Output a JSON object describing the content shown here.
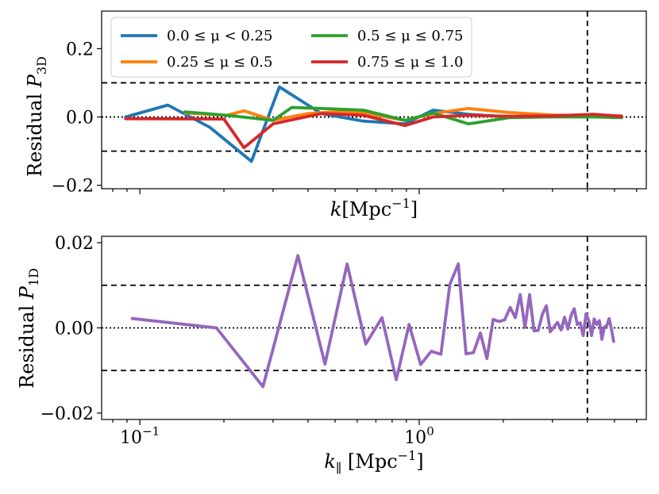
{
  "chart_data": [
    {
      "type": "line",
      "xscale": "log",
      "xlim": [
        0.073,
        6.5
      ],
      "ylim": [
        -0.21,
        0.31
      ],
      "xlabel_main": "k",
      "xlabel_unit": "[Mpc",
      "xlabel_exp": "−1",
      "xlabel_close": "]",
      "ylabel_main": "Residual ",
      "ylabel_sym": "P",
      "ylabel_sub": "3D",
      "yticks": [
        -0.2,
        0.0,
        0.2
      ],
      "ytick_labels": [
        "−0.2",
        "0.0",
        "0.2"
      ],
      "xticks_major": [
        0.1,
        1.0
      ],
      "hlines_dashed": [
        0.1,
        -0.1
      ],
      "hline_dotted": 0.0,
      "vline_dashed": 4.0,
      "legend": {
        "placement": "top-left",
        "columns": 2,
        "entries": [
          {
            "label": "0.0 ≤ μ < 0.25",
            "color": "#1f77b4"
          },
          {
            "label": "0.5 ≤ μ ≤ 0.75",
            "color": "#2ca02c"
          },
          {
            "label": "0.25 ≤ μ ≤ 0.5",
            "color": "#ff7f0e"
          },
          {
            "label": "0.75 ≤ μ ≤ 1.0",
            "color": "#d62728"
          }
        ]
      },
      "series": [
        {
          "name": "0.0 ≤ μ < 0.25",
          "color": "#1f77b4",
          "x": [
            0.089,
            0.126,
            0.178,
            0.251,
            0.316,
            0.446,
            0.63,
            0.89,
            1.12,
            1.5,
            2.1,
            3.0,
            4.2,
            5.3
          ],
          "y": [
            0.0,
            0.035,
            -0.03,
            -0.13,
            0.088,
            0.01,
            -0.012,
            -0.02,
            0.02,
            0.008,
            0.0,
            0.002,
            0.003,
            0.0
          ]
        },
        {
          "name": "0.25 ≤ μ ≤ 0.5",
          "color": "#ff7f0e",
          "x": [
            0.145,
            0.205,
            0.236,
            0.265,
            0.3,
            0.4,
            0.5,
            0.63,
            0.89,
            1.12,
            1.5,
            2.1,
            3.0,
            4.2,
            5.3
          ],
          "y": [
            0.012,
            0.005,
            0.018,
            0.005,
            -0.01,
            0.01,
            0.015,
            0.012,
            -0.01,
            0.01,
            0.025,
            0.013,
            0.006,
            0.004,
            0.003
          ]
        },
        {
          "name": "0.5 ≤ μ ≤ 0.75",
          "color": "#2ca02c",
          "x": [
            0.145,
            0.205,
            0.3,
            0.35,
            0.446,
            0.63,
            0.89,
            1.12,
            1.5,
            2.1,
            3.0,
            4.2,
            5.3
          ],
          "y": [
            0.015,
            0.005,
            -0.01,
            0.028,
            0.025,
            0.02,
            -0.01,
            0.012,
            -0.02,
            -0.002,
            0.0,
            0.0,
            -0.002
          ]
        },
        {
          "name": "0.75 ≤ μ ≤ 1.0",
          "color": "#d62728",
          "x": [
            0.089,
            0.2,
            0.236,
            0.3,
            0.446,
            0.63,
            0.89,
            1.12,
            1.5,
            2.1,
            3.0,
            4.2,
            5.3
          ],
          "y": [
            -0.005,
            -0.006,
            -0.09,
            -0.02,
            0.01,
            0.005,
            -0.025,
            0.0,
            0.005,
            0.002,
            0.003,
            0.008,
            0.002
          ]
        }
      ]
    },
    {
      "type": "line",
      "xscale": "log",
      "xlim": [
        0.073,
        6.5
      ],
      "ylim": [
        -0.0215,
        0.0215
      ],
      "xlabel_main": "k",
      "xlabel_sub": "∥",
      "xlabel_unit": " [Mpc",
      "xlabel_exp": "−1",
      "xlabel_close": "]",
      "ylabel_main": "Residual ",
      "ylabel_sym": "P",
      "ylabel_sub": "1D",
      "yticks": [
        -0.02,
        0.0,
        0.02
      ],
      "ytick_labels": [
        "−0.02",
        "0.00",
        "0.02"
      ],
      "xticks_major": [
        0.1,
        1.0
      ],
      "xtick_labels": [
        {
          "base": "10",
          "exp": "−1"
        },
        {
          "base": "10",
          "exp": "0"
        }
      ],
      "hlines_dashed": [
        0.01,
        -0.01
      ],
      "hline_dotted": 0.0,
      "vline_dashed": 4.0,
      "series": [
        {
          "color": "#9467bd",
          "x": [
            0.094,
            0.188,
            0.276,
            0.368,
            0.46,
            0.552,
            0.644,
            0.736,
            0.828,
            0.92,
            1.012,
            1.104,
            1.196,
            1.288,
            1.38,
            1.472,
            1.564,
            1.656,
            1.748,
            1.84,
            1.932,
            2.024,
            2.116,
            2.208,
            2.3,
            2.392,
            2.484,
            2.576,
            2.668,
            2.76,
            2.852,
            2.944,
            3.036,
            3.128,
            3.22,
            3.312,
            3.404,
            3.496,
            3.588,
            3.68,
            3.772,
            3.864,
            3.956,
            4.048,
            4.14,
            4.232,
            4.324,
            4.416,
            4.508,
            4.6,
            4.692,
            4.784,
            4.876,
            4.968
          ],
          "y": [
            0.0022,
            0.0,
            -0.0138,
            0.017,
            -0.0085,
            0.015,
            -0.0038,
            0.0024,
            -0.0122,
            0.0008,
            -0.0086,
            -0.0055,
            -0.0062,
            0.0102,
            0.015,
            -0.0061,
            -0.0058,
            -0.0012,
            -0.0072,
            0.002,
            0.0015,
            0.0019,
            0.0048,
            0.0024,
            0.0078,
            0.0001,
            0.0078,
            -0.0007,
            -0.0006,
            0.0032,
            0.0052,
            -0.0009,
            0.0002,
            0.0013,
            -0.0005,
            0.0025,
            -0.0003,
            0.0029,
            0.0045,
            0.0008,
            0.0012,
            -0.0018,
            0.0033,
            0.0017,
            -0.0018,
            0.0021,
            0.0008,
            0.0017,
            -0.0027,
            0.0002,
            0.0005,
            0.0022,
            -0.0003,
            -0.0032
          ]
        }
      ]
    }
  ]
}
